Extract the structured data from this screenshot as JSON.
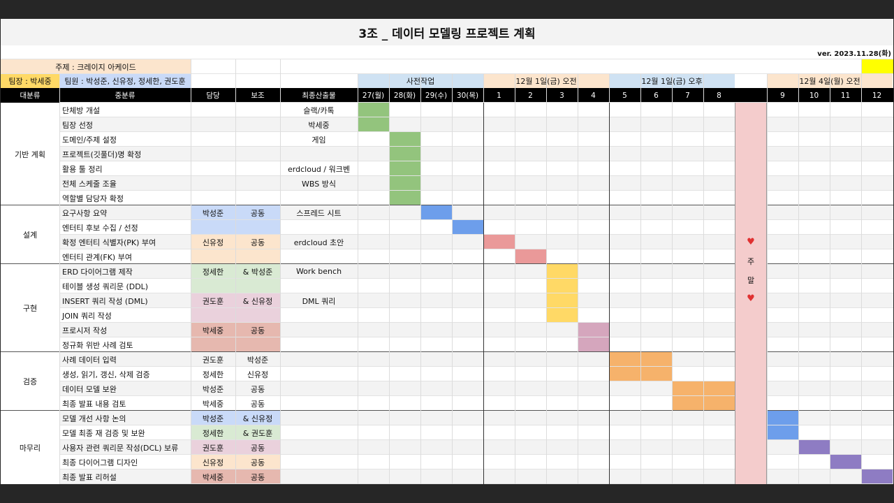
{
  "title": "3조 _ 데이터 모델링 프로젝트 계획",
  "version": "ver. 2023.11.28(화)",
  "topic": "주제 : 크레이지 아케이드",
  "leader": "팀장 : 박세중",
  "members": "팀원 : 박성준, 신유정, 정세한, 권도훈",
  "periods": [
    {
      "label": "사전작업",
      "color": "#cfe2f3"
    },
    {
      "label": "12월 1일(금) 오전",
      "color": "#fce5cd"
    },
    {
      "label": "12월 1일(금) 오후",
      "color": "#cfe2f3"
    },
    {
      "label": "12월 4일(월) 오전",
      "color": "#fce5cd"
    }
  ],
  "headers": {
    "major": "대분류",
    "minor": "중분류",
    "owner": "담당",
    "assist": "보조",
    "output": "최종산출물"
  },
  "time_columns": [
    "27(월)",
    "28(화)",
    "29(수)",
    "30(목)",
    "1",
    "2",
    "3",
    "4",
    "5",
    "6",
    "7",
    "8",
    "9",
    "10",
    "11",
    "12"
  ],
  "weekend": {
    "text_top": "주",
    "text_bottom": "말",
    "heart": "♥"
  },
  "sections": [
    {
      "name": "기반 계획",
      "rows": [
        {
          "task": "단체방 개설",
          "owner": "",
          "assist": "",
          "output": "슬랙/카톡",
          "bar": [
            0
          ],
          "bar_color": "#93c47d"
        },
        {
          "task": "팀장 선정",
          "owner": "",
          "assist": "",
          "output": "박세중",
          "bar": [
            0
          ],
          "bar_color": "#93c47d"
        },
        {
          "task": "도메인/주제 설정",
          "owner": "",
          "assist": "",
          "output": "게임",
          "bar": [
            1
          ],
          "bar_color": "#93c47d"
        },
        {
          "task": "프로젝트(깃풀더)명 확정",
          "owner": "",
          "assist": "",
          "output": "",
          "bar": [
            1
          ],
          "bar_color": "#93c47d"
        },
        {
          "task": "활용 툴 정리",
          "owner": "",
          "assist": "",
          "output": "erdcloud / 워크벤",
          "bar": [
            1
          ],
          "bar_color": "#93c47d"
        },
        {
          "task": "전체 스케줄 조율",
          "owner": "",
          "assist": "",
          "output": "WBS 방식",
          "bar": [
            1
          ],
          "bar_color": "#93c47d"
        },
        {
          "task": "역할별 담당자 확정",
          "owner": "",
          "assist": "",
          "output": "",
          "bar": [
            1
          ],
          "bar_color": "#93c47d"
        }
      ]
    },
    {
      "name": "설계",
      "rows": [
        {
          "task": "요구사항 요약",
          "owner": "박성준",
          "assist": "공동",
          "output": "스프레드 시트",
          "bar": [
            2
          ],
          "bar_color": "#6d9eeb",
          "fill": "#c9daf8"
        },
        {
          "task": "엔터티 후보 수집 / 선정",
          "owner": "",
          "assist": "",
          "output": "",
          "bar": [
            3
          ],
          "bar_color": "#6d9eeb",
          "fill": "#c9daf8"
        },
        {
          "task": "확정 엔터티 식별자(PK) 부여",
          "owner": "신유정",
          "assist": "공동",
          "output": "erdcloud 초안",
          "bar": [
            4
          ],
          "bar_color": "#ea9999",
          "fill": "#fce5cd"
        },
        {
          "task": "엔터티 관계(FK) 부여",
          "owner": "",
          "assist": "",
          "output": "",
          "bar": [
            5
          ],
          "bar_color": "#ea9999",
          "fill": "#fce5cd"
        }
      ]
    },
    {
      "name": "구현",
      "rows": [
        {
          "task": "ERD 다이어그램 제작",
          "owner": "정세한",
          "assist": "& 박성준",
          "output": "Work bench",
          "bar": [
            6
          ],
          "bar_color": "#ffd966",
          "fill": "#d9ead3"
        },
        {
          "task": "테이블 생성 쿼리문 (DDL)",
          "owner": "",
          "assist": "",
          "output": "",
          "bar": [
            6
          ],
          "bar_color": "#ffd966",
          "fill": "#d9ead3"
        },
        {
          "task": "INSERT 쿼리 작성 (DML)",
          "owner": "권도훈",
          "assist": "& 신유정",
          "output": "DML 쿼리",
          "bar": [
            6
          ],
          "bar_color": "#ffd966",
          "fill": "#ead1dc"
        },
        {
          "task": "JOIN 쿼리 작성",
          "owner": "",
          "assist": "",
          "output": "",
          "bar": [
            6
          ],
          "bar_color": "#ffd966",
          "fill": "#ead1dc"
        },
        {
          "task": "프로시저 작성",
          "owner": "박세중",
          "assist": "공동",
          "output": "",
          "bar": [
            7
          ],
          "bar_color": "#d5a6bd",
          "fill": "#e6b8af"
        },
        {
          "task": "정규화 위반 사례 검토",
          "owner": "",
          "assist": "",
          "output": "",
          "bar": [
            7
          ],
          "bar_color": "#d5a6bd",
          "fill": "#e6b8af"
        }
      ]
    },
    {
      "name": "검증",
      "rows": [
        {
          "task": "사례 데이터 입력",
          "owner": "권도훈",
          "assist": "박성준",
          "output": "",
          "bar": [
            8,
            9
          ],
          "bar_color": "#f6b26b"
        },
        {
          "task": "생성, 읽기, 갱신, 삭제 검증",
          "owner": "정세한",
          "assist": "신유정",
          "output": "",
          "bar": [
            8,
            9
          ],
          "bar_color": "#f6b26b"
        },
        {
          "task": "데이터 모델 보완",
          "owner": "박성준",
          "assist": "공동",
          "output": "",
          "bar": [
            10,
            11
          ],
          "bar_color": "#f6b26b"
        },
        {
          "task": "최종 발표 내용 검토",
          "owner": "박세중",
          "assist": "공동",
          "output": "",
          "bar": [
            10,
            11
          ],
          "bar_color": "#f6b26b"
        }
      ]
    },
    {
      "name": "마무리",
      "rows": [
        {
          "task": "모델 개선 사항 논의",
          "owner": "박성준",
          "assist": "& 신유정",
          "output": "",
          "bar": [
            12
          ],
          "bar_color": "#6d9eeb",
          "fill": "#c9daf8"
        },
        {
          "task": "모델 최종 재 검증 및 보완",
          "owner": "정세한",
          "assist": "& 권도훈",
          "output": "",
          "bar": [
            12
          ],
          "bar_color": "#6d9eeb",
          "fill": "#d9ead3"
        },
        {
          "task": "사용자 관련 쿼리문 작성(DCL) 보류",
          "owner": "권도훈",
          "assist": "공동",
          "output": "",
          "bar": [
            13
          ],
          "bar_color": "#8e7cc3",
          "fill": "#ead1dc"
        },
        {
          "task": "최종 다이어그램 디자인",
          "owner": "신유정",
          "assist": "공동",
          "output": "",
          "bar": [
            14
          ],
          "bar_color": "#8e7cc3",
          "fill": "#fce5cd"
        },
        {
          "task": "최종 발표 리허설",
          "owner": "박세중",
          "assist": "공동",
          "output": "",
          "bar": [
            15
          ],
          "bar_color": "#8e7cc3",
          "fill": "#e6b8af"
        }
      ]
    }
  ]
}
